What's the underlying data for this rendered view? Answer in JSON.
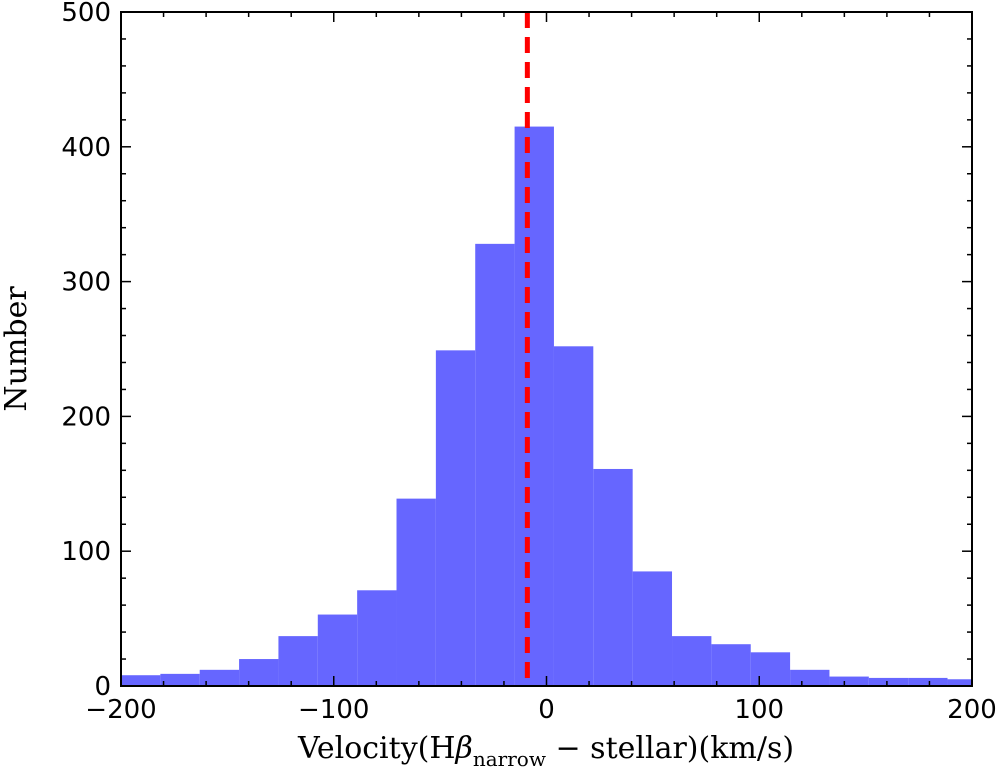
{
  "chart_data": {
    "type": "histogram",
    "xlabel": "Velocity(Hβnarrow − stellar)(km/s)",
    "xlabel_parts": {
      "before": "Velocity(H",
      "beta": "β",
      "subscript": "narrow",
      "after": " − stellar)(km/s)"
    },
    "ylabel": "Number",
    "xlim": [
      -200,
      200
    ],
    "ylim": [
      0,
      500
    ],
    "x_ticks": [
      -200,
      -100,
      0,
      100,
      200
    ],
    "x_tick_labels": [
      "−200",
      "−100",
      "0",
      "100",
      "200"
    ],
    "y_ticks": [
      0,
      100,
      200,
      300,
      400,
      500
    ],
    "y_tick_labels": [
      "0",
      "100",
      "200",
      "300",
      "400",
      "500"
    ],
    "bar_color": "#6666ff",
    "bins": [
      {
        "x0": -200,
        "x1": -181.5,
        "count": 8
      },
      {
        "x0": -181.5,
        "x1": -163,
        "count": 9
      },
      {
        "x0": -163,
        "x1": -144.5,
        "count": 12
      },
      {
        "x0": -144.5,
        "x1": -126,
        "count": 20
      },
      {
        "x0": -126,
        "x1": -107.5,
        "count": 37
      },
      {
        "x0": -107.5,
        "x1": -89,
        "count": 53
      },
      {
        "x0": -89,
        "x1": -70.5,
        "count": 71
      },
      {
        "x0": -70.5,
        "x1": -52,
        "count": 139
      },
      {
        "x0": -52,
        "x1": -33.5,
        "count": 249
      },
      {
        "x0": -33.5,
        "x1": -15,
        "count": 328
      },
      {
        "x0": -15,
        "x1": 3.5,
        "count": 415
      },
      {
        "x0": 3.5,
        "x1": 22,
        "count": 252
      },
      {
        "x0": 22,
        "x1": 40.5,
        "count": 161
      },
      {
        "x0": 40.5,
        "x1": 59,
        "count": 85
      },
      {
        "x0": 59,
        "x1": 77.5,
        "count": 37
      },
      {
        "x0": 77.5,
        "x1": 96,
        "count": 31
      },
      {
        "x0": 96,
        "x1": 114.5,
        "count": 25
      },
      {
        "x0": 114.5,
        "x1": 133,
        "count": 12
      },
      {
        "x0": 133,
        "x1": 151.5,
        "count": 7
      },
      {
        "x0": 151.5,
        "x1": 170,
        "count": 6
      },
      {
        "x0": 170,
        "x1": 188.5,
        "count": 6
      },
      {
        "x0": 188.5,
        "x1": 200,
        "count": 5
      }
    ],
    "reference_line": {
      "x": -9,
      "color": "#ff0000",
      "style": "dashed"
    }
  }
}
